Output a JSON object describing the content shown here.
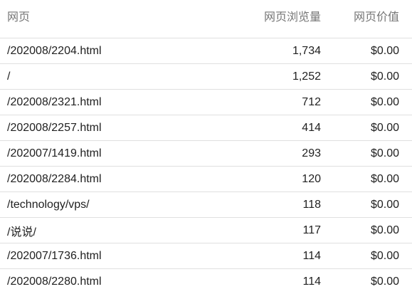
{
  "table": {
    "headers": {
      "page": "网页",
      "pageviews": "网页浏览量",
      "page_value": "网页价值"
    },
    "rows": [
      {
        "page": "/202008/2204.html",
        "pageviews": "1,734",
        "page_value": "$0.00"
      },
      {
        "page": "/",
        "pageviews": "1,252",
        "page_value": "$0.00"
      },
      {
        "page": "/202008/2321.html",
        "pageviews": "712",
        "page_value": "$0.00"
      },
      {
        "page": "/202008/2257.html",
        "pageviews": "414",
        "page_value": "$0.00"
      },
      {
        "page": "/202007/1419.html",
        "pageviews": "293",
        "page_value": "$0.00"
      },
      {
        "page": "/202008/2284.html",
        "pageviews": "120",
        "page_value": "$0.00"
      },
      {
        "page": "/technology/vps/",
        "pageviews": "118",
        "page_value": "$0.00"
      },
      {
        "page": "/说说/",
        "pageviews": "117",
        "page_value": "$0.00"
      },
      {
        "page": "/202007/1736.html",
        "pageviews": "114",
        "page_value": "$0.00"
      },
      {
        "page": "/202008/2280.html",
        "pageviews": "114",
        "page_value": "$0.00"
      }
    ]
  }
}
